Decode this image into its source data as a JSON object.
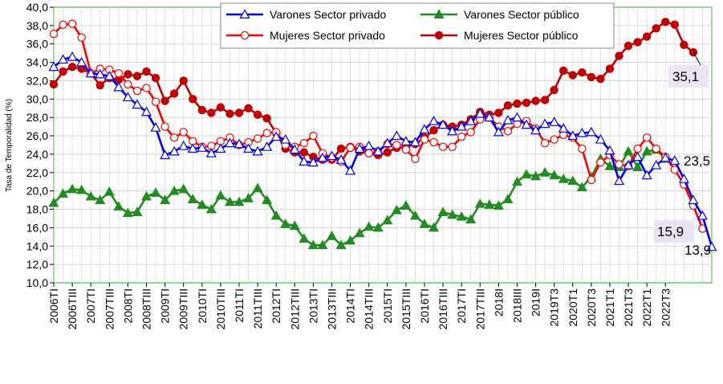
{
  "chart_data": {
    "type": "line",
    "title": "",
    "ylabel": "Tasa de Temporalidad (%)",
    "xlabel": "",
    "ylim": [
      10,
      40
    ],
    "ytick_step": 2,
    "ytick_labels": [
      "10,0",
      "12,0",
      "14,0",
      "16,0",
      "18,0",
      "20,0",
      "22,0",
      "24,0",
      "26,0",
      "28,0",
      "30,0",
      "32,0",
      "34,0",
      "36,0",
      "38,0",
      "40,0"
    ],
    "grid": true,
    "legend_position": "top",
    "x_labels": [
      {
        "index": 0,
        "label": "2006TI"
      },
      {
        "index": 2,
        "label": "2006TIII"
      },
      {
        "index": 4,
        "label": "2007TI"
      },
      {
        "index": 6,
        "label": "2007TIII"
      },
      {
        "index": 8,
        "label": "2008TI"
      },
      {
        "index": 10,
        "label": "2008TIII"
      },
      {
        "index": 12,
        "label": "2009TI"
      },
      {
        "index": 14,
        "label": "2009TIII"
      },
      {
        "index": 16,
        "label": "2010TI"
      },
      {
        "index": 18,
        "label": "2010TIII"
      },
      {
        "index": 20,
        "label": "2011TI"
      },
      {
        "index": 22,
        "label": "2011TIII"
      },
      {
        "index": 24,
        "label": "2012TI"
      },
      {
        "index": 26,
        "label": "2012TIII"
      },
      {
        "index": 28,
        "label": "2013TI"
      },
      {
        "index": 30,
        "label": "2013TIII"
      },
      {
        "index": 32,
        "label": "2014TI"
      },
      {
        "index": 34,
        "label": "2014TIII"
      },
      {
        "index": 36,
        "label": "2015TI"
      },
      {
        "index": 38,
        "label": "2015TIII"
      },
      {
        "index": 40,
        "label": "2016TI"
      },
      {
        "index": 42,
        "label": "2016TIII"
      },
      {
        "index": 44,
        "label": "2017TI"
      },
      {
        "index": 46,
        "label": "2017TIII"
      },
      {
        "index": 48,
        "label": "2018I"
      },
      {
        "index": 50,
        "label": "2018III"
      },
      {
        "index": 52,
        "label": "2019I"
      },
      {
        "index": 54,
        "label": "2019T3"
      },
      {
        "index": 56,
        "label": "2020T1"
      },
      {
        "index": 58,
        "label": "2020T3"
      },
      {
        "index": 60,
        "label": "2021T1"
      },
      {
        "index": 62,
        "label": "2021T3"
      },
      {
        "index": 64,
        "label": "2022T1"
      },
      {
        "index": 66,
        "label": "2022T3"
      }
    ],
    "series": [
      {
        "name": "Varones Sector privado",
        "color": "#0000ee",
        "marker": "triangle-open",
        "values": [
          33.5,
          34.3,
          34.6,
          34.0,
          32.8,
          32.7,
          32.5,
          31.3,
          30.2,
          29.4,
          28.6,
          26.9,
          23.9,
          24.3,
          24.9,
          24.6,
          24.7,
          24.1,
          24.6,
          25.2,
          25.1,
          24.6,
          24.3,
          24.8,
          25.9,
          25.6,
          24.5,
          23.2,
          23.1,
          23.6,
          23.8,
          23.4,
          22.2,
          24.6,
          24.9,
          24.3,
          25.2,
          26.0,
          25.4,
          25.3,
          26.7,
          27.6,
          27.2,
          26.5,
          27.0,
          27.6,
          28.4,
          28.0,
          26.4,
          27.7,
          28.0,
          27.2,
          26.6,
          27.3,
          27.5,
          26.8,
          26.0,
          26.3,
          26.4,
          25.6,
          24.4,
          21.1,
          22.8,
          23.7,
          21.7,
          22.8,
          23.6,
          23.3,
          21.3,
          19.0,
          17.3,
          13.9
        ]
      },
      {
        "name": "Varones Sector público",
        "color": "#228b22",
        "marker": "triangle-filled",
        "values": [
          18.7,
          19.7,
          20.2,
          20.1,
          19.4,
          19.0,
          19.9,
          18.3,
          17.6,
          17.7,
          19.4,
          19.8,
          19.0,
          20.0,
          20.2,
          19.1,
          18.5,
          18.0,
          19.5,
          18.8,
          18.8,
          19.2,
          20.3,
          19.0,
          17.3,
          16.4,
          16.2,
          14.8,
          14.1,
          14.1,
          15.1,
          14.1,
          14.6,
          15.4,
          16.1,
          16.0,
          16.8,
          17.9,
          18.4,
          17.3,
          16.4,
          16.0,
          17.7,
          17.4,
          17.2,
          16.9,
          18.6,
          18.5,
          18.4,
          19.1,
          21.0,
          21.8,
          21.6,
          22.0,
          21.7,
          21.3,
          21.1,
          20.4,
          21.5,
          23.5,
          22.7,
          22.6,
          24.3,
          22.6,
          24.3,
          24.5,
          23.5
        ]
      },
      {
        "name": "Mujeres Sector privado",
        "color": "#ff0000",
        "marker": "circle-open",
        "values": [
          37.1,
          38.1,
          38.2,
          36.7,
          32.8,
          33.3,
          33.2,
          32.8,
          31.6,
          30.9,
          31.2,
          29.7,
          27.0,
          25.8,
          26.4,
          25.4,
          24.8,
          24.9,
          25.4,
          25.8,
          25.0,
          25.3,
          25.7,
          26.3,
          26.4,
          25.0,
          24.8,
          25.2,
          26.0,
          24.1,
          23.6,
          23.2,
          24.7,
          24.8,
          24.1,
          24.3,
          25.1,
          25.0,
          24.5,
          23.5,
          25.6,
          25.3,
          24.8,
          24.8,
          25.9,
          26.4,
          27.8,
          28.0,
          27.0,
          26.5,
          27.3,
          27.6,
          26.8,
          25.2,
          25.6,
          26.1,
          25.8,
          24.6,
          21.2,
          23.1,
          23.9,
          22.9,
          22.7,
          24.6,
          25.8,
          24.6,
          23.7,
          22.3,
          20.7,
          18.4,
          15.9
        ]
      },
      {
        "name": "Mujeres Sector público",
        "color": "#c00000",
        "marker": "circle-filled",
        "values": [
          31.6,
          33.0,
          33.5,
          33.3,
          32.8,
          31.5,
          32.3,
          32.1,
          32.7,
          32.5,
          33.0,
          32.3,
          29.8,
          30.6,
          32.0,
          30.0,
          28.8,
          28.5,
          29.1,
          28.4,
          28.5,
          29.0,
          28.3,
          27.9,
          26.3,
          24.6,
          24.2,
          24.2,
          23.7,
          23.4,
          23.4,
          24.6,
          24.8,
          24.3,
          24.1,
          23.9,
          24.2,
          24.7,
          24.8,
          25.1,
          25.8,
          26.6,
          27.2,
          27.0,
          27.2,
          27.8,
          28.6,
          28.3,
          28.5,
          29.3,
          29.5,
          29.6,
          29.8,
          29.9,
          31.0,
          33.1,
          32.6,
          32.9,
          32.4,
          32.2,
          33.3,
          34.7,
          35.8,
          36.2,
          36.8,
          37.7,
          38.4,
          38.1,
          35.9,
          35.1
        ]
      }
    ],
    "annotations": [
      {
        "series": 3,
        "value": "35,1"
      },
      {
        "series": 1,
        "value": "23,5"
      },
      {
        "series": 2,
        "value": "15,9"
      },
      {
        "series": 0,
        "value": "13,9"
      }
    ]
  }
}
